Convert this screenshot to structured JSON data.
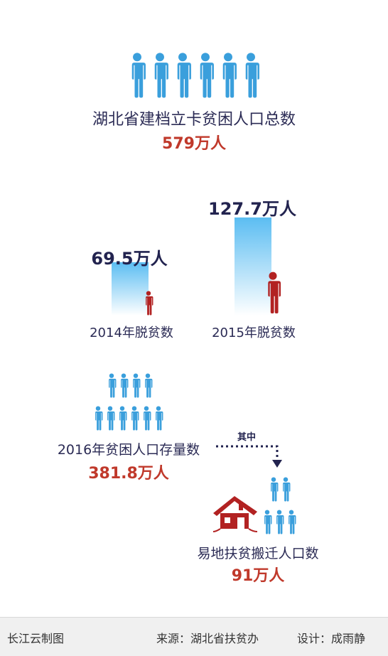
{
  "header": {
    "title": "湖北省建档立卡贫困人口总数",
    "total": "579万人"
  },
  "chart_data": {
    "type": "bar",
    "categories": [
      "2014年脱贫数",
      "2015年脱贫数"
    ],
    "values": [
      69.5,
      127.7
    ],
    "value_labels": [
      "69.5万人",
      "127.7万人"
    ],
    "unit": "万人"
  },
  "stock": {
    "label": "2016年贫困人口存量数",
    "value": "381.8万人",
    "connector": "其中"
  },
  "relocation": {
    "label": "易地扶贫搬迁人口数",
    "value": "91万人"
  },
  "footer": {
    "brand": "长江云制图",
    "source": "来源：湖北省扶贫办",
    "design": "设计：成雨静"
  },
  "colors": {
    "blue_person": "#3a9fdc",
    "red_person": "#b22222",
    "bar_top": "#ffffff",
    "bar_bottom": "#5bbdf2",
    "dark_text": "#2b2b55",
    "red_text": "#c0392b"
  },
  "icons": [
    "person-icon",
    "house-icon",
    "arrow-down-icon"
  ]
}
